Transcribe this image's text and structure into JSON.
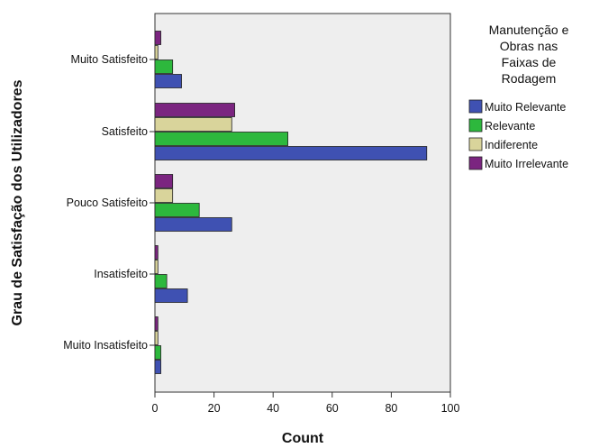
{
  "chart_data": {
    "type": "bar",
    "orientation": "horizontal",
    "title": "",
    "xlabel": "Count",
    "ylabel": "Grau de Satisfação dos Utilizadores",
    "xlim": [
      0,
      100
    ],
    "xticks": [
      "0",
      "20",
      "40",
      "60",
      "80",
      "100"
    ],
    "categories": [
      "Muito Satisfeito",
      "Satisfeito",
      "Pouco Satisfeito",
      "Insatisfeito",
      "Muito Insatisfeito"
    ],
    "legend": {
      "title": "Manutenção e Obras nas Faixas de Rodagem",
      "title_lines": [
        "Manutenção e",
        "Obras nas",
        "Faixas de",
        "Rodagem"
      ],
      "placement": "right"
    },
    "series": [
      {
        "name": "Muito Relevante",
        "color": "#3f51b2",
        "values": [
          9,
          92,
          26,
          11,
          2
        ]
      },
      {
        "name": "Relevante",
        "color": "#2db83d",
        "values": [
          6,
          45,
          15,
          4,
          2
        ]
      },
      {
        "name": "Indiferente",
        "color": "#d9d49b",
        "values": [
          1,
          26,
          6,
          1,
          1
        ]
      },
      {
        "name": "Muito Irrelevante",
        "color": "#7b2580",
        "values": [
          2,
          27,
          6,
          1,
          1
        ]
      }
    ],
    "grid": false,
    "plot_background": "#eeeeee"
  }
}
